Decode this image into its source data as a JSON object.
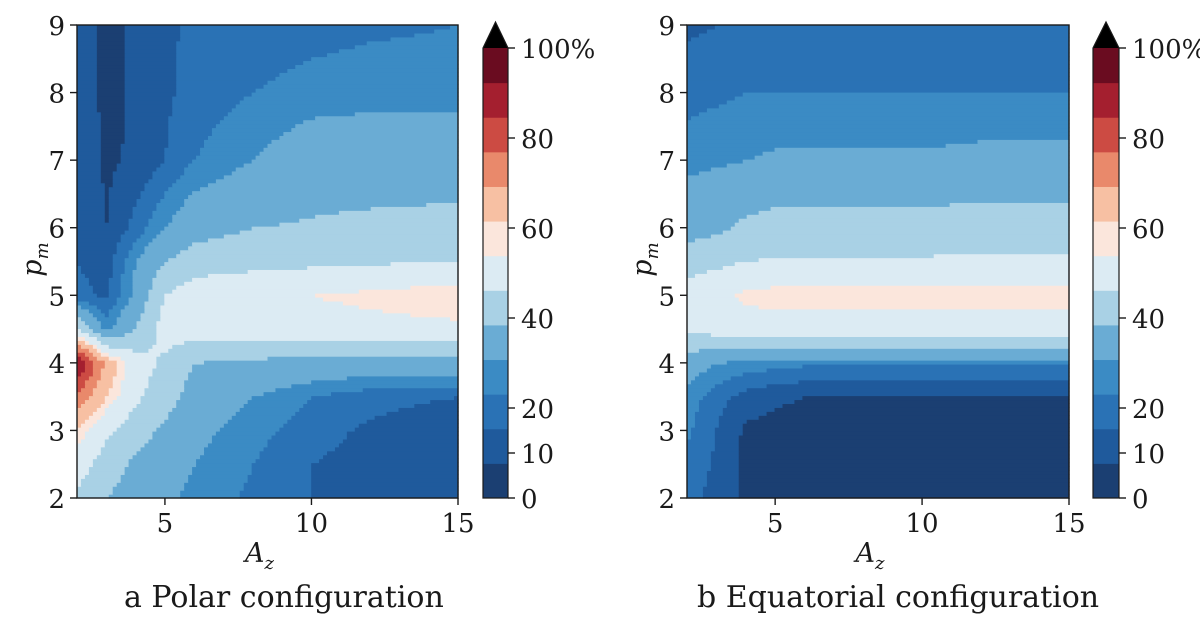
{
  "figure": {
    "captions": [
      "a Polar configuration",
      "b Equatorial configuration"
    ]
  },
  "colors": {
    "levels": [
      "#1b3f72",
      "#1f5a9c",
      "#2a72b5",
      "#3b8bc4",
      "#6aacd4",
      "#a9d1e5",
      "#dcebf3",
      "#fbe6dc",
      "#f7c0a3",
      "#e9896b",
      "#cc4b43",
      "#a41f2f",
      "#6a0c20"
    ],
    "axis": "#1a1a1a"
  },
  "chart_data": [
    {
      "type": "contourf",
      "title": "Polar configuration",
      "xlabel": "A",
      "xlabel_sub": "z",
      "ylabel": "p",
      "ylabel_sub": "m",
      "xlim": [
        2,
        15
      ],
      "ylim": [
        2,
        9
      ],
      "xticks": [
        5,
        10,
        15
      ],
      "yticks": [
        2,
        3,
        4,
        5,
        6,
        7,
        8,
        9
      ],
      "levels": [
        0,
        5,
        10,
        15,
        20,
        25,
        30,
        35,
        40,
        45,
        50,
        55,
        60,
        65,
        70,
        75,
        80,
        85,
        90,
        95,
        100
      ],
      "grid_x": [
        2,
        3,
        4,
        5,
        6,
        8,
        10,
        12,
        15
      ],
      "grid_y": [
        2,
        2.5,
        3,
        3.5,
        4,
        4.5,
        5,
        5.5,
        6,
        7,
        8,
        9
      ],
      "z": [
        [
          38,
          30,
          25,
          22,
          18,
          14,
          10,
          8,
          7
        ],
        [
          45,
          35,
          28,
          24,
          20,
          15,
          10,
          8,
          6
        ],
        [
          55,
          42,
          34,
          28,
          22,
          17,
          12,
          9,
          5
        ],
        [
          72,
          55,
          42,
          34,
          26,
          20,
          15,
          12,
          10
        ],
        [
          98,
          62,
          45,
          38,
          30,
          28,
          26,
          25,
          26
        ],
        [
          40,
          18,
          30,
          45,
          44,
          45,
          46,
          47,
          48
        ],
        [
          12,
          9,
          22,
          40,
          46,
          48,
          50,
          52,
          55
        ],
        [
          10,
          7,
          20,
          30,
          35,
          37,
          38,
          39,
          40
        ],
        [
          10,
          5,
          12,
          20,
          26,
          30,
          31,
          32,
          33
        ],
        [
          10,
          4,
          6,
          10,
          15,
          20,
          25,
          25,
          25
        ],
        [
          10,
          3,
          6,
          9,
          12,
          15,
          17,
          18,
          18
        ],
        [
          10,
          3,
          6,
          9,
          11,
          12,
          13,
          14,
          15
        ]
      ],
      "colorbar": {
        "ticks": [
          0,
          10,
          20,
          40,
          60,
          80
        ],
        "ticklabels": [
          "0",
          "10",
          "20",
          "40",
          "60",
          "80"
        ],
        "top_label": "100%",
        "extend": "max"
      }
    },
    {
      "type": "contourf",
      "title": "Equatorial configuration",
      "xlabel": "A",
      "xlabel_sub": "z",
      "ylabel": "p",
      "ylabel_sub": "m",
      "xlim": [
        2,
        15
      ],
      "ylim": [
        2,
        9
      ],
      "xticks": [
        5,
        10,
        15
      ],
      "yticks": [
        2,
        3,
        4,
        5,
        6,
        7,
        8,
        9
      ],
      "levels": [
        0,
        5,
        10,
        15,
        20,
        25,
        30,
        35,
        40,
        45,
        50,
        55,
        60,
        65,
        70,
        75,
        80,
        85,
        90,
        95,
        100
      ],
      "grid_x": [
        2,
        3,
        4,
        5,
        6,
        8,
        10,
        12,
        15
      ],
      "grid_y": [
        2,
        2.5,
        3,
        3.5,
        4,
        4.5,
        5,
        5.5,
        6,
        7,
        8,
        9
      ],
      "z": [
        [
          12,
          8,
          4,
          3,
          3,
          3,
          3,
          3,
          3
        ],
        [
          14,
          9,
          4,
          3,
          3,
          3,
          3,
          3,
          3
        ],
        [
          16,
          10,
          4,
          3,
          3,
          3,
          3,
          3,
          3
        ],
        [
          18,
          12,
          8,
          6,
          5,
          4,
          4,
          4,
          4
        ],
        [
          24,
          20,
          18,
          17,
          16,
          16,
          16,
          16,
          16
        ],
        [
          42,
          44,
          45,
          46,
          46,
          46,
          46,
          46,
          46
        ],
        [
          44,
          47,
          52,
          53,
          53,
          53,
          53,
          53,
          53
        ],
        [
          36,
          38,
          40,
          41,
          41,
          41,
          41,
          42,
          42
        ],
        [
          26,
          28,
          32,
          34,
          34,
          34,
          34,
          35,
          35
        ],
        [
          18,
          19,
          20,
          21,
          21,
          21,
          21,
          22,
          22
        ],
        [
          13,
          14,
          15,
          15,
          15,
          15,
          15,
          15,
          15
        ],
        [
          9,
          10,
          11,
          11,
          11,
          11,
          11,
          11,
          11
        ]
      ],
      "colorbar": {
        "ticks": [
          0,
          10,
          20,
          40,
          60,
          80
        ],
        "ticklabels": [
          "0",
          "10",
          "20",
          "40",
          "60",
          "80"
        ],
        "top_label": "100%",
        "extend": "max"
      }
    }
  ]
}
